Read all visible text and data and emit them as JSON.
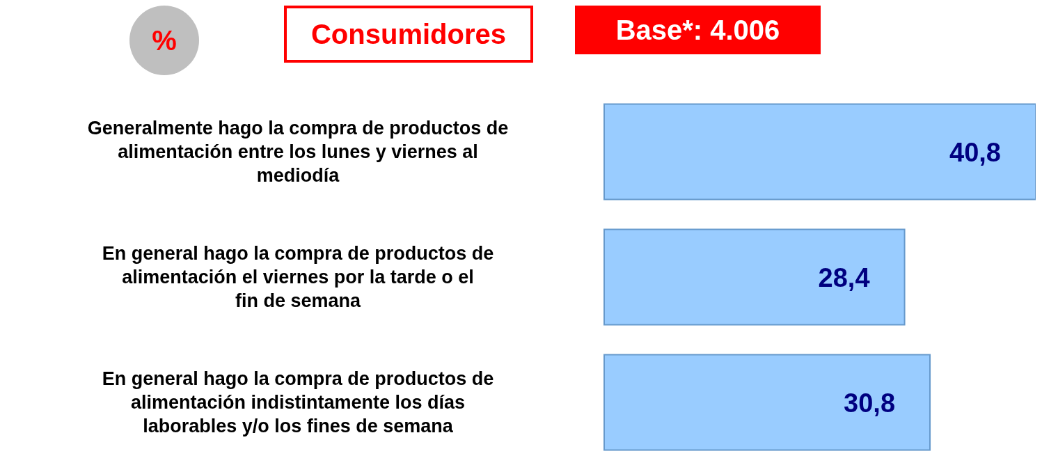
{
  "chart_data": {
    "type": "bar",
    "orientation": "horizontal",
    "title": "Consumidores",
    "subtitle": "Base*: 4.006",
    "annotations": [
      "%"
    ],
    "categories": [
      "Generalmente hago la compra de productos de alimentación entre los lunes y viernes al mediodía",
      "En general hago la compra de productos de alimentación el viernes por la tarde o el fin de semana",
      "En general hago la compra de productos de alimentación indistintamente los días laborables y/o los fines de semana"
    ],
    "values": [
      40.8,
      28.4,
      30.8
    ],
    "value_labels": [
      "40,8",
      "28,4",
      "30,8"
    ],
    "color": "#99ccff"
  }
}
